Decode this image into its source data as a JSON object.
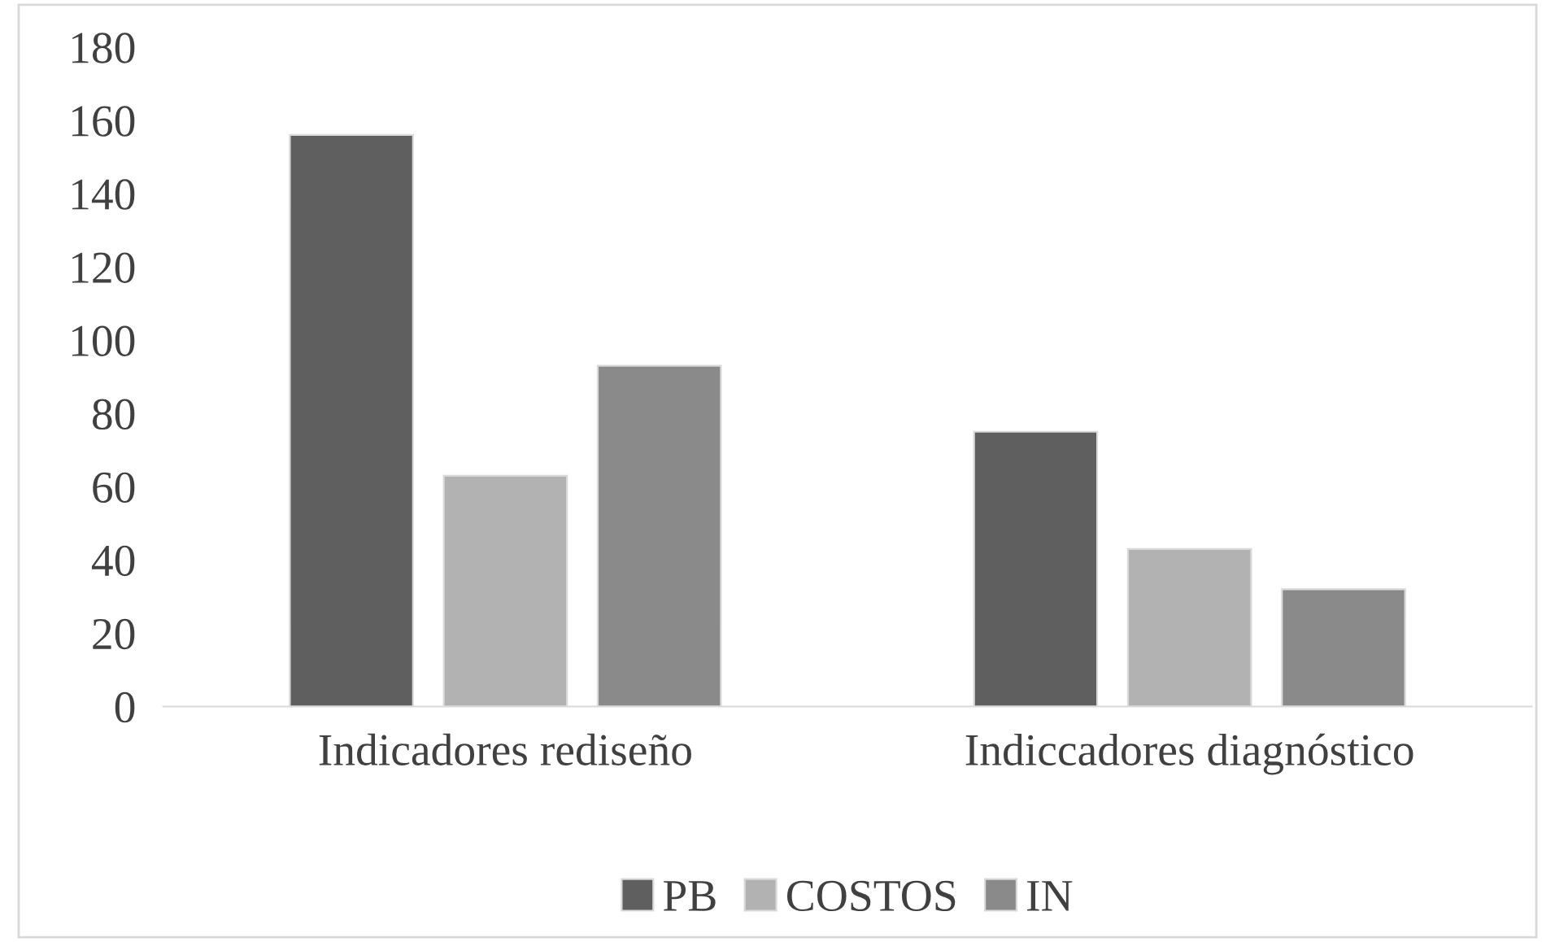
{
  "chart_data": {
    "type": "bar",
    "categories": [
      "Indicadores rediseño",
      "Indiccadores diagnóstico"
    ],
    "series": [
      {
        "name": "PB",
        "color": "#5f5f5f",
        "values": [
          156,
          75
        ]
      },
      {
        "name": "COSTOS",
        "color": "#b2b2b2",
        "values": [
          63,
          43
        ]
      },
      {
        "name": "IN",
        "color": "#8a8a8a",
        "values": [
          93,
          32
        ]
      }
    ],
    "ylim": [
      0,
      180
    ],
    "yticks": [
      0,
      20,
      40,
      60,
      80,
      100,
      120,
      140,
      160,
      180
    ],
    "grid": false,
    "legend": "bottom"
  }
}
